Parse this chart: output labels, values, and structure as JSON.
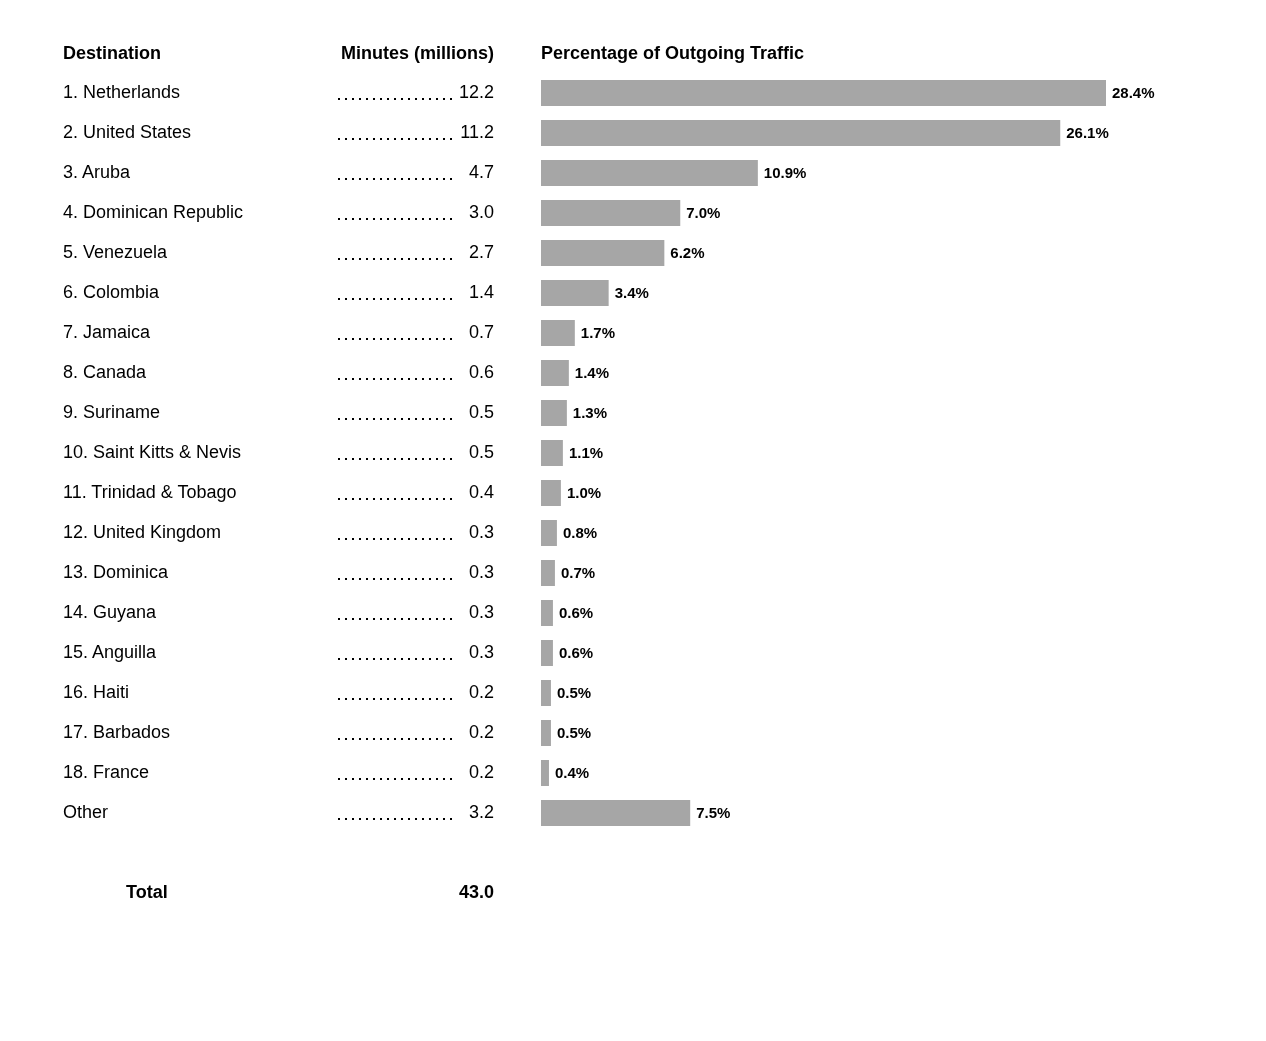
{
  "chart_data": [
    {
      "type": "other",
      "xlabel": "Destination",
      "ylabel": "Minutes (millions)",
      "categories": [
        "1. Netherlands",
        "2. United States",
        "3. Aruba",
        "4. Dominican Republic",
        "5. Venezuela",
        "6. Colombia",
        "7. Jamaica",
        "8. Canada",
        "9. Suriname",
        "10. Saint Kitts & Nevis",
        "11. Trinidad & Tobago",
        "12. United Kingdom",
        "13. Dominica",
        "14. Guyana",
        "15. Anguilla",
        "16. Haiti",
        "17. Barbados",
        "18. France",
        "Other"
      ],
      "values": [
        12.2,
        11.2,
        4.7,
        3.0,
        2.7,
        1.4,
        0.7,
        0.6,
        0.5,
        0.5,
        0.4,
        0.3,
        0.3,
        0.3,
        0.3,
        0.2,
        0.2,
        0.2,
        3.2
      ],
      "value_labels": [
        "12.2",
        "11.2",
        "4.7",
        "3.0",
        "2.7",
        "1.4",
        "0.7",
        "0.6",
        "0.5",
        "0.5",
        "0.4",
        "0.3",
        "0.3",
        "0.3",
        "0.3",
        "0.2",
        "0.2",
        "0.2",
        "3.2"
      ],
      "annotations": [
        "Total"
      ],
      "totals": [
        "43.0"
      ]
    },
    {
      "type": "bar",
      "orientation": "horizontal",
      "title": "Percentage of Outgoing Traffic",
      "color": "#a6a6a6",
      "categories": [
        null,
        null,
        null,
        null,
        null,
        null,
        null,
        null,
        null,
        null,
        null,
        null,
        null,
        null,
        null,
        null,
        null,
        null,
        null
      ],
      "values": [
        28.4,
        26.1,
        10.9,
        7.0,
        6.2,
        3.4,
        1.7,
        1.4,
        1.3,
        1.1,
        1.0,
        0.8,
        0.7,
        0.6,
        0.6,
        0.5,
        0.5,
        0.4,
        7.5
      ],
      "value_labels": [
        "28.4%",
        "26.1%",
        "10.9%",
        "7.0%",
        "6.2%",
        "3.4%",
        "1.7%",
        "1.4%",
        "1.3%",
        "1.1%",
        "1.0%",
        "0.8%",
        "0.7%",
        "0.6%",
        "0.6%",
        "0.5%",
        "0.5%",
        "0.4%",
        "7.5%"
      ]
    }
  ]
}
